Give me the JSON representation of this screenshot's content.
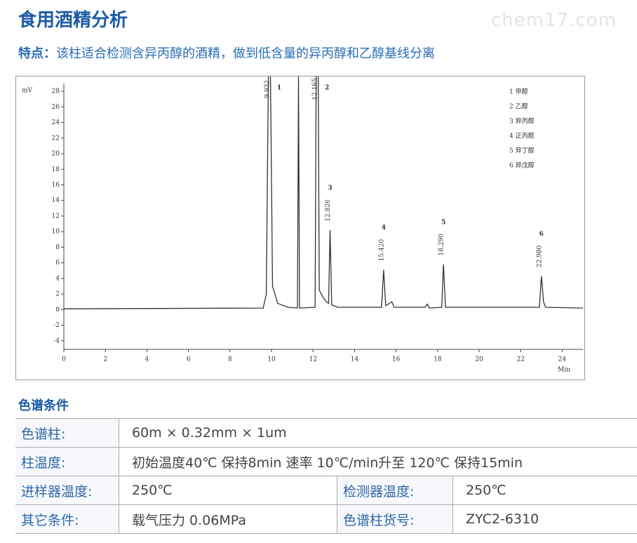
{
  "header": {
    "title": "食用酒精分析",
    "watermark": "chem17.com",
    "feature_label": "特点：",
    "feature_text": "该柱适合检测含异丙醇的酒精，做到低含量的异丙醇和乙醇基线分离"
  },
  "chart_data": {
    "type": "line",
    "xlabel": "Min",
    "ylabel": "mV",
    "x": [
      0,
      9.6,
      9.75,
      9.85,
      9.95,
      10.05,
      10.3,
      10.8,
      11.25,
      11.3,
      11.35,
      12.1,
      12.15,
      12.25,
      12.3,
      12.5,
      12.65,
      12.75,
      12.82,
      12.9,
      13.2,
      15.3,
      15.4,
      15.5,
      15.8,
      15.9,
      17.4,
      17.5,
      17.6,
      18.2,
      18.28,
      18.38,
      22.9,
      23.0,
      23.1,
      23.2,
      25
    ],
    "series": [
      {
        "color": "#333333",
        "values": [
          0.1,
          0.2,
          2,
          30,
          30,
          3,
          0.8,
          0.3,
          0.2,
          30,
          0.2,
          0.3,
          30,
          30,
          2.5,
          1.5,
          1,
          0.8,
          10.2,
          0.6,
          0.3,
          0.3,
          5.1,
          0.5,
          1,
          0.3,
          0.3,
          0.7,
          0.2,
          0.3,
          5.8,
          0.3,
          0.3,
          4.3,
          1,
          0.3,
          0.2
        ]
      }
    ],
    "xlim": [
      0,
      25
    ],
    "ylim": [
      -5.1,
      29.9
    ],
    "xticks": [
      0,
      2,
      4,
      6,
      8,
      10,
      12,
      14,
      16,
      18,
      20,
      22,
      24
    ],
    "yticks": [
      -4,
      -2,
      0,
      2,
      4,
      6,
      8,
      10,
      12,
      14,
      16,
      18,
      20,
      22,
      24,
      26,
      28
    ],
    "peaks": [
      {
        "number": "1",
        "time": "9.932",
        "x": 9.9,
        "y": 30
      },
      {
        "number": "2",
        "time": "12.165",
        "x": 12.2,
        "y": 30
      },
      {
        "number": "3",
        "time": "12.826",
        "x": 12.82,
        "y": 10.2
      },
      {
        "number": "4",
        "time": "15.420",
        "x": 15.4,
        "y": 5.1
      },
      {
        "number": "5",
        "time": "18.290",
        "x": 18.28,
        "y": 5.8
      },
      {
        "number": "6",
        "time": "22.980",
        "x": 23.0,
        "y": 4.3
      }
    ],
    "legend": [
      "1  甲醇",
      "2  乙醇",
      "3  异丙醇",
      "4  正丙醇",
      "5  异丁醇",
      "6  异戊醇"
    ]
  },
  "section_title": "色谱条件",
  "table": {
    "rows": [
      [
        "色谱柱:",
        "60m × 0.32mm × 1um"
      ],
      [
        "柱温度:",
        "初始温度40℃ 保持8min  速率 10℃/min升至 120℃ 保持15min"
      ],
      [
        "进样器温度:",
        "250℃",
        "检测器温度:",
        "250℃"
      ],
      [
        "其它条件:",
        "载气压力 0.06MPa",
        "色谱柱货号:",
        "ZYC2-6310"
      ]
    ]
  }
}
